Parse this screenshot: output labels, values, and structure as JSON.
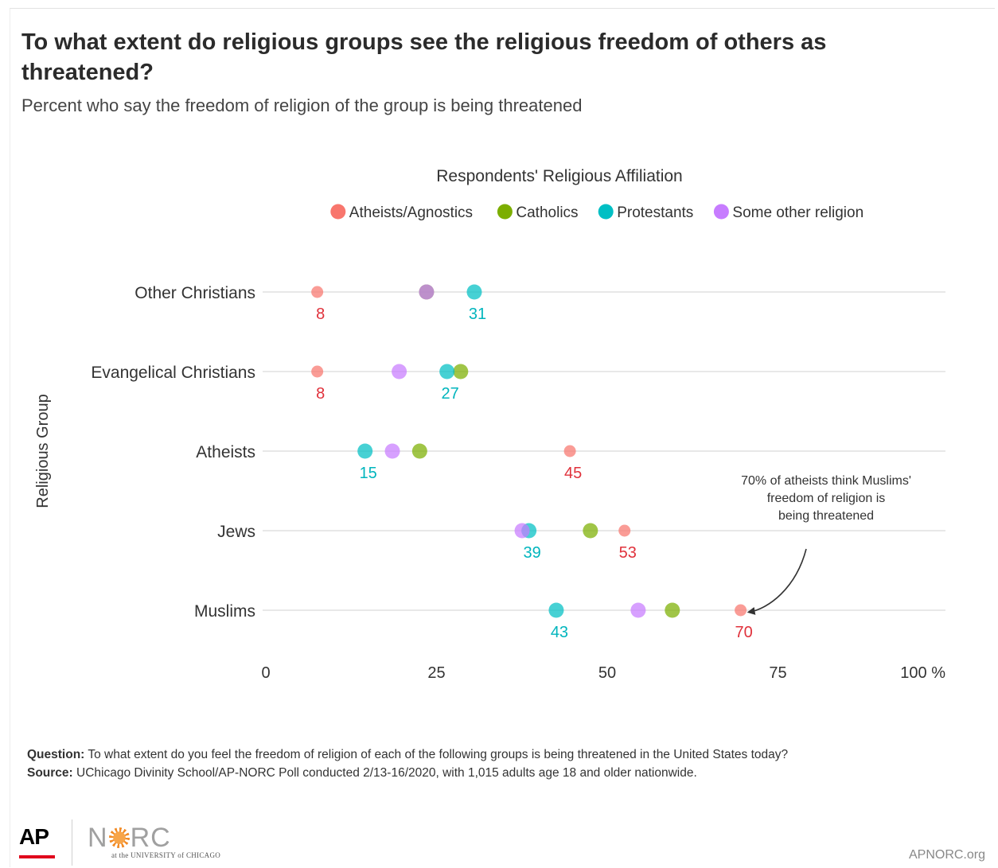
{
  "header": {
    "title": "To what extent do religious groups see the religious freedom of others as threatened?",
    "subtitle": "Percent who say the freedom of religion of the group is being threatened"
  },
  "chart_data": {
    "type": "scatter",
    "subtype": "dot-plot",
    "legend_title": "Respondents' Religious Affiliation",
    "legend_position": "top",
    "ylabel": "Religious Group",
    "categories": [
      "Other Christians",
      "Evangelical Christians",
      "Atheists",
      "Jews",
      "Muslims"
    ],
    "xlim": [
      0,
      100
    ],
    "xticks": [
      {
        "value": 0,
        "label": "0"
      },
      {
        "value": 25,
        "label": "25"
      },
      {
        "value": 50,
        "label": "50"
      },
      {
        "value": 75,
        "label": "75"
      },
      {
        "value": 100,
        "label": "100 %"
      }
    ],
    "grid": true,
    "series": [
      {
        "name": "Atheists/Agnostics",
        "color": "#f8766d",
        "label_color": "#e0313b",
        "values": [
          8,
          8,
          45,
          53,
          70
        ]
      },
      {
        "name": "Catholics",
        "color": "#7cae00",
        "label_color": "#5f8a00",
        "values": [
          24,
          29,
          23,
          48,
          60
        ]
      },
      {
        "name": "Protestants",
        "color": "#00bfc4",
        "label_color": "#00b5bd",
        "values": [
          31,
          27,
          15,
          39,
          43
        ]
      },
      {
        "name": "Some other religion",
        "color": "#c77cff",
        "label_color": "#a050e0",
        "values": [
          24,
          20,
          19,
          38,
          55
        ]
      }
    ],
    "data_labels": [
      {
        "category": "Other Christians",
        "series": "Atheists/Agnostics",
        "text": "8"
      },
      {
        "category": "Other Christians",
        "series": "Protestants",
        "text": "31"
      },
      {
        "category": "Evangelical Christians",
        "series": "Atheists/Agnostics",
        "text": "8"
      },
      {
        "category": "Evangelical Christians",
        "series": "Protestants",
        "text": "27"
      },
      {
        "category": "Atheists",
        "series": "Protestants",
        "text": "15"
      },
      {
        "category": "Atheists",
        "series": "Atheists/Agnostics",
        "text": "45"
      },
      {
        "category": "Jews",
        "series": "Protestants",
        "text": "39"
      },
      {
        "category": "Jews",
        "series": "Atheists/Agnostics",
        "text": "53"
      },
      {
        "category": "Muslims",
        "series": "Protestants",
        "text": "43"
      },
      {
        "category": "Muslims",
        "series": "Atheists/Agnostics",
        "text": "70"
      }
    ],
    "annotation": {
      "lines": [
        "70% of atheists think Muslims'",
        "freedom of religion is",
        "being threatened"
      ],
      "points_to": {
        "category": "Muslims",
        "value": 70
      }
    }
  },
  "footer": {
    "question_label": "Question:",
    "question": "To what extent do you feel the freedom of religion of each of the following groups is being threatened in the United States today?",
    "source_label": "Source:",
    "source": "UChicago Divinity School/AP-NORC Poll conducted 2/13-16/2020, with 1,015 adults age 18 and older nationwide.",
    "logos": {
      "ap": "AP",
      "norc": "NORC",
      "norc_sub": "at the UNIVERSITY of CHICAGO"
    },
    "site": "APNORC.org"
  }
}
